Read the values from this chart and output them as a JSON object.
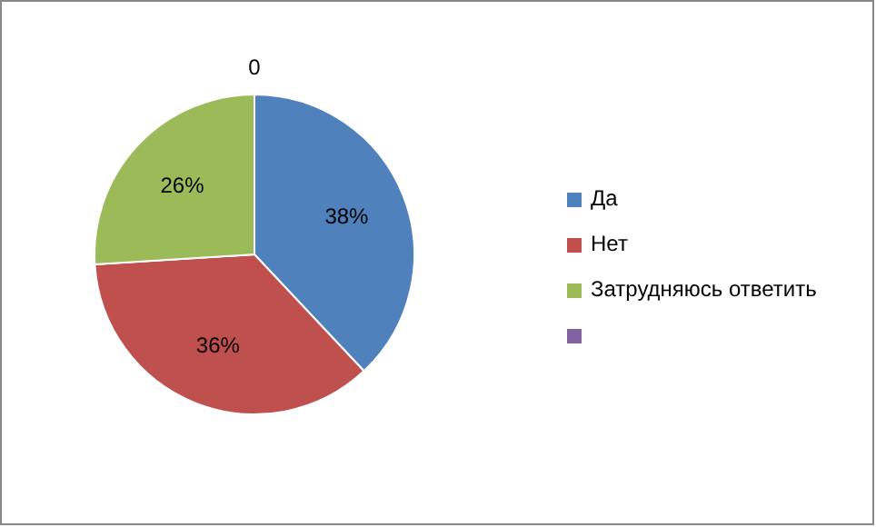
{
  "chart_data": {
    "type": "pie",
    "categories": [
      "Да",
      "Нет",
      "Затрудняюсь ответить",
      null
    ],
    "values": [
      38,
      36,
      26,
      0
    ],
    "colors": [
      "#4f81bd",
      "#c0504d",
      "#9bbb59",
      "#8064a2"
    ],
    "value_labels": [
      "38%",
      "36%",
      "26%",
      "0"
    ],
    "legend": "right"
  }
}
